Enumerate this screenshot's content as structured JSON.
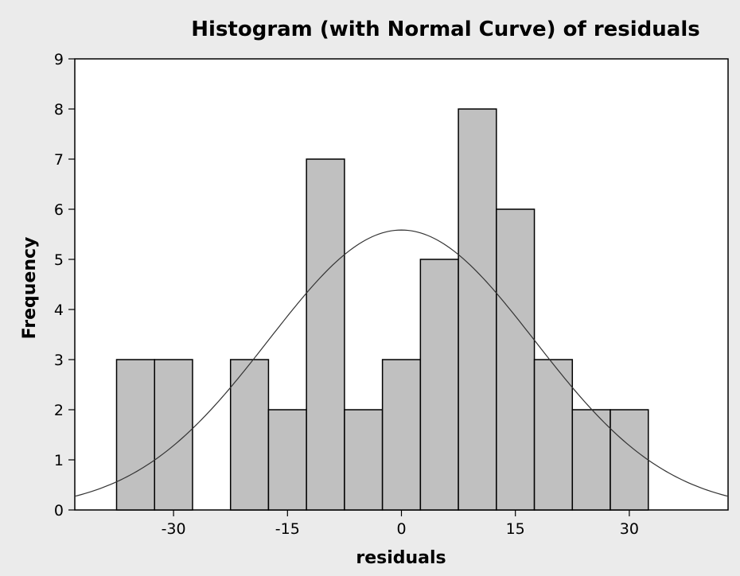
{
  "chart_data": {
    "type": "bar",
    "title": "Histogram (with Normal Curve) of residuals",
    "xlabel": "residuals",
    "ylabel": "Frequency",
    "xlim": [
      -43,
      43
    ],
    "ylim": [
      0,
      9
    ],
    "x_ticks": [
      -30,
      -15,
      0,
      15,
      30
    ],
    "y_ticks": [
      0,
      1,
      2,
      3,
      4,
      5,
      6,
      7,
      8,
      9
    ],
    "bin_width": 5,
    "bins": [
      {
        "center": -35,
        "count": 3
      },
      {
        "center": -30,
        "count": 3
      },
      {
        "center": -25,
        "count": 0
      },
      {
        "center": -20,
        "count": 3
      },
      {
        "center": -15,
        "count": 2
      },
      {
        "center": -10,
        "count": 7
      },
      {
        "center": -5,
        "count": 2
      },
      {
        "center": 0,
        "count": 3
      },
      {
        "center": 5,
        "count": 5
      },
      {
        "center": 10,
        "count": 8
      },
      {
        "center": 15,
        "count": 6
      },
      {
        "center": 20,
        "count": 3
      },
      {
        "center": 25,
        "count": 2
      },
      {
        "center": 30,
        "count": 2
      }
    ],
    "normal_curve": {
      "mean": 0,
      "stdev": 17.5,
      "n": 49
    },
    "grid": false,
    "colors": {
      "bar_fill": "#c0c0c0",
      "bar_stroke": "#000000",
      "plot_bg": "#ffffff",
      "page_bg": "#ebebeb"
    }
  }
}
